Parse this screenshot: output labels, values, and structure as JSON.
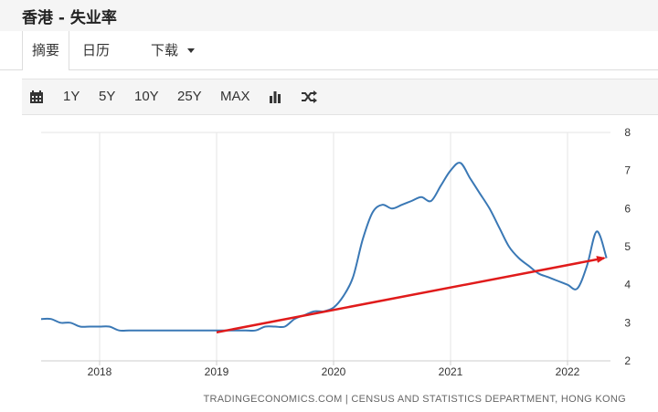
{
  "header": {
    "title": "香港 - 失业率"
  },
  "tabs": [
    {
      "label": "摘要"
    },
    {
      "label": "日历"
    },
    {
      "label": "下载"
    }
  ],
  "toolbar": {
    "ranges": [
      "1Y",
      "5Y",
      "10Y",
      "25Y",
      "MAX"
    ],
    "icons": [
      "calendar-icon",
      "bar-chart-icon",
      "shuffle-icon"
    ]
  },
  "colors": {
    "line": "#3a78b5",
    "arrow": "#e01b1b",
    "grid": "#e6e6e6"
  },
  "chart_data": {
    "type": "line",
    "title": "",
    "xlabel": "",
    "ylabel": "",
    "ylim": [
      2,
      8
    ],
    "y_ticks": [
      2,
      3,
      4,
      5,
      6,
      7,
      8
    ],
    "x_ticks": [
      "2018",
      "2019",
      "2020",
      "2021",
      "2022"
    ],
    "grid": true,
    "source": "TRADINGECONOMICS.COM | CENSUS AND STATISTICS DEPARTMENT, HONG KONG",
    "series": [
      {
        "x": [
          "2017-07",
          "2017-08",
          "2017-09",
          "2017-10",
          "2017-11",
          "2017-12",
          "2018-01",
          "2018-02",
          "2018-03",
          "2018-04",
          "2018-05",
          "2018-06",
          "2018-07",
          "2018-08",
          "2018-09",
          "2018-10",
          "2018-11",
          "2018-12",
          "2019-01",
          "2019-02",
          "2019-03",
          "2019-04",
          "2019-05",
          "2019-06",
          "2019-07",
          "2019-08",
          "2019-09",
          "2019-10",
          "2019-11",
          "2019-12",
          "2020-01",
          "2020-02",
          "2020-03",
          "2020-04",
          "2020-05",
          "2020-06",
          "2020-07",
          "2020-08",
          "2020-09",
          "2020-10",
          "2020-11",
          "2020-12",
          "2021-01",
          "2021-02",
          "2021-03",
          "2021-04",
          "2021-05",
          "2021-06",
          "2021-07",
          "2021-08",
          "2021-09",
          "2021-10",
          "2021-11",
          "2021-12",
          "2022-01",
          "2022-02",
          "2022-03",
          "2022-04",
          "2022-05"
        ],
        "values": [
          3.1,
          3.1,
          3.0,
          3.0,
          2.9,
          2.9,
          2.9,
          2.9,
          2.8,
          2.8,
          2.8,
          2.8,
          2.8,
          2.8,
          2.8,
          2.8,
          2.8,
          2.8,
          2.8,
          2.8,
          2.8,
          2.8,
          2.8,
          2.9,
          2.9,
          2.9,
          3.1,
          3.2,
          3.3,
          3.3,
          3.4,
          3.7,
          4.2,
          5.2,
          5.9,
          6.1,
          6.0,
          6.1,
          6.2,
          6.3,
          6.2,
          6.6,
          7.0,
          7.2,
          6.8,
          6.4,
          6.0,
          5.5,
          5.0,
          4.7,
          4.5,
          4.3,
          4.2,
          4.1,
          4.0,
          3.9,
          4.5,
          5.4,
          4.7
        ]
      }
    ],
    "annotations": [
      {
        "type": "arrow",
        "from": {
          "x": "2019-01",
          "y": 2.75
        },
        "to": {
          "x": "2022-04",
          "y": 4.7
        }
      }
    ]
  }
}
